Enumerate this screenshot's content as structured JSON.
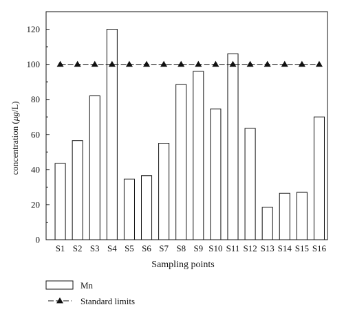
{
  "chart_data": {
    "type": "bar",
    "categories": [
      "S1",
      "S2",
      "S3",
      "S4",
      "S5",
      "S6",
      "S7",
      "S8",
      "S9",
      "S10",
      "S11",
      "S12",
      "S13",
      "S14",
      "S15",
      "S16"
    ],
    "series": [
      {
        "name": "Mn",
        "type": "bar",
        "values": [
          43.5,
          56.5,
          82,
          120,
          34.5,
          36.5,
          55,
          88.5,
          96,
          74.5,
          106,
          63.5,
          18.5,
          26.5,
          27,
          70
        ]
      },
      {
        "name": "Standard limits",
        "type": "line",
        "marker": "triangle",
        "values": [
          100,
          100,
          100,
          100,
          100,
          100,
          100,
          100,
          100,
          100,
          100,
          100,
          100,
          100,
          100,
          100
        ]
      }
    ],
    "xlabel": "Sampling points",
    "ylabel_prefix": "concentration (",
    "ylabel_unit": "μg",
    "ylabel_suffix": "/L)",
    "ylim": [
      0,
      130
    ],
    "yticks": [
      0,
      20,
      40,
      60,
      80,
      100,
      120
    ],
    "grid": false,
    "legend_position": "bottom-left",
    "colors": {
      "bar_fill": "#ffffff",
      "stroke": "#111111"
    }
  }
}
